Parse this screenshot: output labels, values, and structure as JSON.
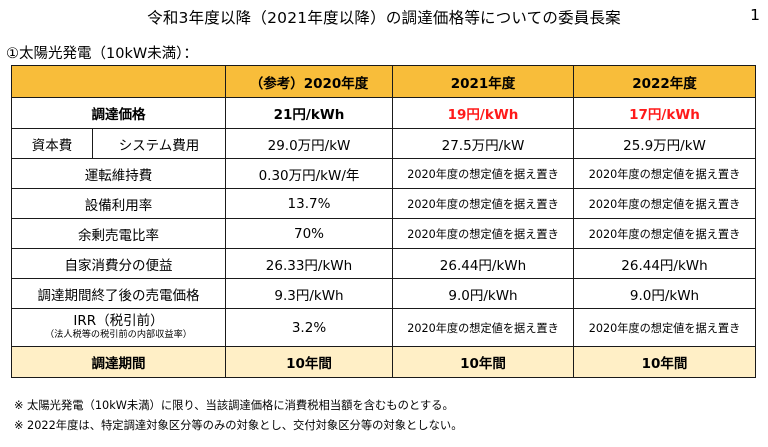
{
  "header": {
    "title": "令和3年度以降（2021年度以降）の調達価格等についての委員長案",
    "page_number": "1"
  },
  "section": {
    "label": "①太陽光発電（10kW未満）："
  },
  "table": {
    "columns": [
      "（参考）2020年度",
      "2021年度",
      "2022年度"
    ],
    "rows": [
      {
        "label": "調達価格",
        "values": [
          "21円/kWh",
          "19円/kWh",
          "17円/kWh"
        ]
      },
      {
        "group": "資本費",
        "label": "システム費用",
        "values": [
          "29.0万円/kW",
          "27.5万円/kW",
          "25.9万円/kW"
        ]
      },
      {
        "label": "運転維持費",
        "values": [
          "0.30万円/kW/年",
          "2020年度の想定値を据え置き",
          "2020年度の想定値を据え置き"
        ]
      },
      {
        "label": "設備利用率",
        "values": [
          "13.7%",
          "2020年度の想定値を据え置き",
          "2020年度の想定値を据え置き"
        ]
      },
      {
        "label": "余剰売電比率",
        "values": [
          "70%",
          "2020年度の想定値を据え置き",
          "2020年度の想定値を据え置き"
        ]
      },
      {
        "label": "自家消費分の便益",
        "values": [
          "26.33円/kWh",
          "26.44円/kWh",
          "26.44円/kWh"
        ]
      },
      {
        "label": "調達期間終了後の売電価格",
        "values": [
          "9.3円/kWh",
          "9.0円/kWh",
          "9.0円/kWh"
        ]
      },
      {
        "label": "IRR（税引前）",
        "sublabel": "（法人税等の税引前の内部収益率）",
        "values": [
          "3.2%",
          "2020年度の想定値を据え置き",
          "2020年度の想定値を据え置き"
        ]
      },
      {
        "label": "調達期間",
        "values": [
          "10年間",
          "10年間",
          "10年間"
        ]
      }
    ]
  },
  "notes": [
    "※ 太陽光発電（10kW未満）に限り、当該調達価格に消費税相当額を含むものとする。",
    "※ 2022年度は、特定調達対象区分等のみの対象とし、交付対象区分等の対象としない。"
  ],
  "colors": {
    "header_bg": "#f8bd3a",
    "highlight_row_bg": "#ffefc6",
    "price_change_text": "#ff1a1a"
  }
}
